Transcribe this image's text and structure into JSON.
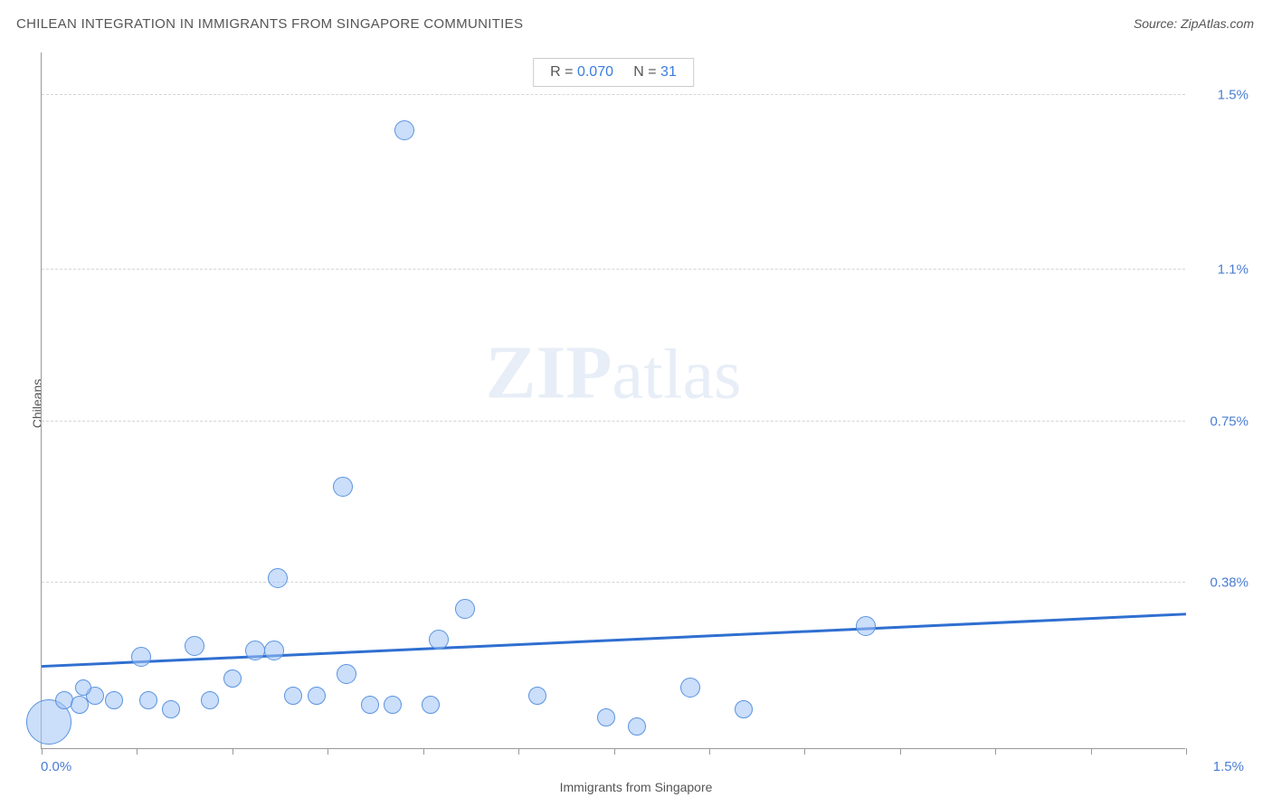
{
  "title": "CHILEAN INTEGRATION IN IMMIGRANTS FROM SINGAPORE COMMUNITIES",
  "source": "Source: ZipAtlas.com",
  "stats": {
    "r_label": "R = ",
    "r_value": "0.070",
    "n_label": "N = ",
    "n_value": "31"
  },
  "xlabel": "Immigrants from Singapore",
  "ylabel": "Chileans",
  "watermark_zip": "ZIP",
  "watermark_atlas": "atlas",
  "chart": {
    "type": "scatter",
    "xlim": [
      0.0,
      1.5
    ],
    "ylim": [
      0.0,
      1.6
    ],
    "x_ticks": [
      0.0,
      0.125,
      0.25,
      0.375,
      0.5,
      0.625,
      0.75,
      0.875,
      1.0,
      1.125,
      1.25,
      1.375,
      1.5
    ],
    "x_tick_labels": {
      "0": "0.0%",
      "1.5": "1.5%"
    },
    "y_gridlines": [
      0.38,
      0.75,
      1.1,
      1.5
    ],
    "y_tick_labels": {
      "0.38": "0.38%",
      "0.75": "0.75%",
      "1.1": "1.1%",
      "1.5": "1.5%"
    },
    "trend": {
      "y_at_x0": 0.19,
      "y_at_xmax": 0.31,
      "color": "#2f6fd0",
      "width": 3
    },
    "bubble_fill": "rgba(160,195,245,0.55)",
    "bubble_stroke": "#5a94e0",
    "background_color": "#ffffff",
    "grid_color": "#d5d5d5",
    "title_color": "#555555",
    "axis_label_color": "#555555",
    "tick_label_color": "#4a7dd4",
    "points": [
      {
        "x": 0.01,
        "y": 0.06,
        "r": 25
      },
      {
        "x": 0.03,
        "y": 0.11,
        "r": 10
      },
      {
        "x": 0.05,
        "y": 0.1,
        "r": 10
      },
      {
        "x": 0.07,
        "y": 0.12,
        "r": 10
      },
      {
        "x": 0.095,
        "y": 0.11,
        "r": 10
      },
      {
        "x": 0.13,
        "y": 0.21,
        "r": 11
      },
      {
        "x": 0.14,
        "y": 0.11,
        "r": 10
      },
      {
        "x": 0.17,
        "y": 0.09,
        "r": 10
      },
      {
        "x": 0.2,
        "y": 0.235,
        "r": 11
      },
      {
        "x": 0.22,
        "y": 0.11,
        "r": 10
      },
      {
        "x": 0.25,
        "y": 0.16,
        "r": 10
      },
      {
        "x": 0.28,
        "y": 0.225,
        "r": 11
      },
      {
        "x": 0.305,
        "y": 0.225,
        "r": 11
      },
      {
        "x": 0.31,
        "y": 0.39,
        "r": 11
      },
      {
        "x": 0.33,
        "y": 0.12,
        "r": 10
      },
      {
        "x": 0.36,
        "y": 0.12,
        "r": 10
      },
      {
        "x": 0.395,
        "y": 0.6,
        "r": 11
      },
      {
        "x": 0.4,
        "y": 0.17,
        "r": 11
      },
      {
        "x": 0.43,
        "y": 0.1,
        "r": 10
      },
      {
        "x": 0.46,
        "y": 0.1,
        "r": 10
      },
      {
        "x": 0.475,
        "y": 1.42,
        "r": 11
      },
      {
        "x": 0.51,
        "y": 0.1,
        "r": 10
      },
      {
        "x": 0.52,
        "y": 0.25,
        "r": 11
      },
      {
        "x": 0.555,
        "y": 0.32,
        "r": 11
      },
      {
        "x": 0.65,
        "y": 0.12,
        "r": 10
      },
      {
        "x": 0.74,
        "y": 0.07,
        "r": 10
      },
      {
        "x": 0.78,
        "y": 0.05,
        "r": 10
      },
      {
        "x": 0.85,
        "y": 0.14,
        "r": 11
      },
      {
        "x": 0.92,
        "y": 0.09,
        "r": 10
      },
      {
        "x": 1.08,
        "y": 0.28,
        "r": 11
      },
      {
        "x": 0.055,
        "y": 0.14,
        "r": 9
      }
    ]
  }
}
